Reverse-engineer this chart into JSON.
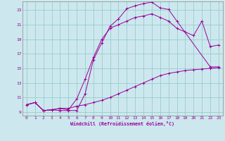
{
  "xlabel": "Windchill (Refroidissement éolien,°C)",
  "bg_color": "#cce8ee",
  "line_color": "#990099",
  "grid_color": "#99cccc",
  "xlim": [
    -0.5,
    23.5
  ],
  "ylim": [
    8.5,
    24.2
  ],
  "xticks": [
    0,
    1,
    2,
    3,
    4,
    5,
    6,
    7,
    8,
    9,
    10,
    11,
    12,
    13,
    14,
    15,
    16,
    17,
    18,
    19,
    20,
    21,
    22,
    23
  ],
  "yticks": [
    9,
    11,
    13,
    15,
    17,
    19,
    21,
    23
  ],
  "line1_x": [
    0,
    1,
    2,
    3,
    4,
    5,
    6,
    7,
    8,
    9,
    10,
    11,
    12,
    13,
    14,
    15,
    16,
    17,
    18,
    22,
    23
  ],
  "line1_y": [
    10.0,
    10.3,
    9.2,
    9.3,
    9.2,
    9.2,
    9.2,
    11.5,
    16.2,
    18.5,
    20.8,
    21.8,
    23.2,
    23.6,
    23.9,
    24.1,
    23.3,
    23.1,
    21.5,
    15.2,
    15.2
  ],
  "line2_x": [
    0,
    1,
    2,
    3,
    4,
    5,
    6,
    7,
    8,
    9,
    10,
    11,
    12,
    13,
    14,
    15,
    16,
    17,
    18,
    19,
    20,
    21,
    22,
    23
  ],
  "line2_y": [
    10.0,
    10.3,
    9.2,
    9.3,
    9.5,
    9.3,
    10.8,
    13.5,
    16.5,
    19.0,
    20.5,
    21.0,
    21.5,
    22.0,
    22.2,
    22.5,
    22.0,
    21.5,
    20.5,
    20.0,
    19.5,
    21.5,
    18.0,
    18.2
  ],
  "line3_x": [
    0,
    1,
    2,
    3,
    4,
    5,
    6,
    7,
    8,
    9,
    10,
    11,
    12,
    13,
    14,
    15,
    16,
    17,
    18,
    19,
    20,
    21,
    22,
    23
  ],
  "line3_y": [
    10.0,
    10.3,
    9.2,
    9.3,
    9.5,
    9.5,
    9.8,
    10.0,
    10.3,
    10.6,
    11.0,
    11.5,
    12.0,
    12.5,
    13.0,
    13.5,
    14.0,
    14.3,
    14.5,
    14.7,
    14.8,
    14.9,
    15.0,
    15.1
  ]
}
